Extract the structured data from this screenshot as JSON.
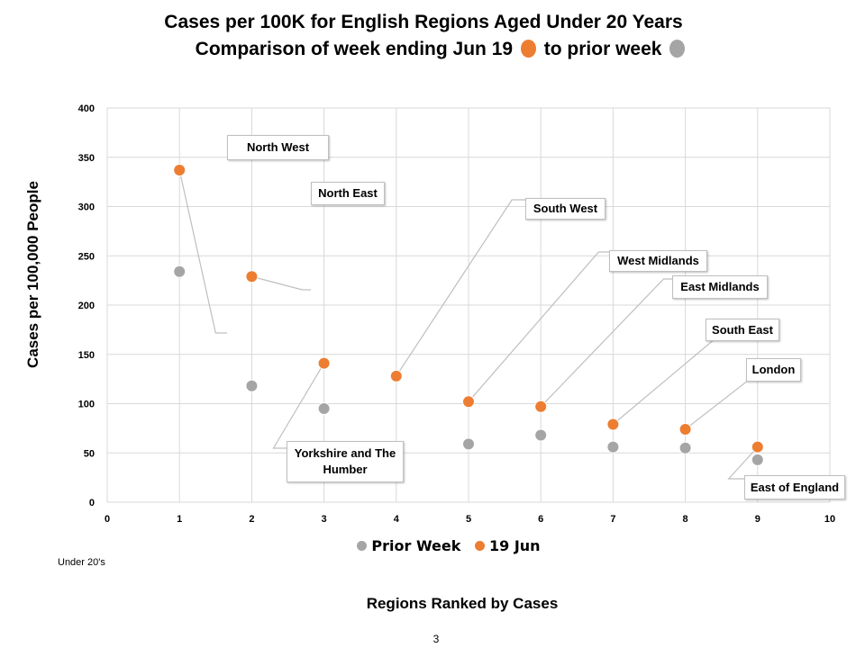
{
  "title": {
    "line1": "Cases per 100K for English Regions Aged Under 20 Years",
    "line2_before": "Comparison of week ending Jun 19",
    "line2_middle": "to prior week"
  },
  "colors": {
    "current": "#ed7d31",
    "prior": "#a5a5a5",
    "grid": "#d9d9d9",
    "leader": "#bfbfbf"
  },
  "note": "Under 20's",
  "page_number": "3",
  "chart_data": {
    "type": "scatter",
    "title": "Cases per 100K for English Regions Aged Under 20 Years",
    "xlabel": "Regions Ranked by Cases",
    "ylabel": "Cases per 100,000 People",
    "xlim": [
      0,
      10
    ],
    "ylim": [
      0,
      400
    ],
    "xticks": [
      0,
      1,
      2,
      3,
      4,
      5,
      6,
      7,
      8,
      9,
      10
    ],
    "yticks": [
      0,
      50,
      100,
      150,
      200,
      250,
      300,
      350,
      400
    ],
    "grid": true,
    "legend_position": "bottom",
    "series": [
      {
        "name": "Prior Week",
        "color": "#a5a5a5",
        "x": [
          1,
          2,
          3,
          5,
          6,
          7,
          8,
          9
        ],
        "y": [
          234,
          118,
          95,
          59,
          68,
          56,
          55,
          43
        ]
      },
      {
        "name": "19 Jun",
        "color": "#ed7d31",
        "x": [
          1,
          2,
          3,
          4,
          5,
          6,
          7,
          8,
          9
        ],
        "y": [
          337,
          229,
          141,
          128,
          102,
          97,
          79,
          74,
          56
        ]
      }
    ],
    "annotations": [
      {
        "label": "North West",
        "rank": 1
      },
      {
        "label": "North East",
        "rank": 2
      },
      {
        "label": "Yorkshire and The Humber",
        "rank": 3
      },
      {
        "label": "South West",
        "rank": 4
      },
      {
        "label": "West Midlands",
        "rank": 5
      },
      {
        "label": "East Midlands",
        "rank": 6
      },
      {
        "label": "South East",
        "rank": 7
      },
      {
        "label": "London",
        "rank": 8
      },
      {
        "label": "East of England",
        "rank": 9
      }
    ]
  }
}
